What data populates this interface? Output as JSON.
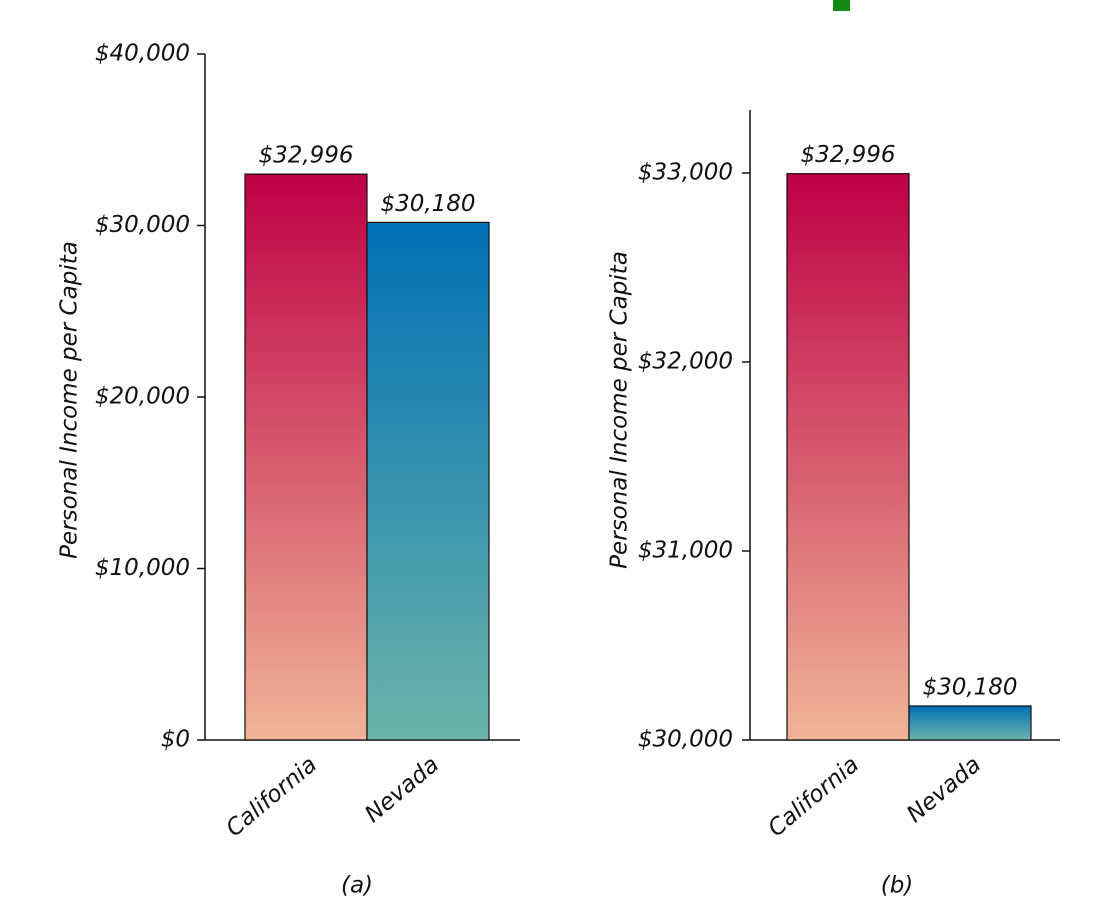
{
  "chart_data": [
    {
      "type": "bar",
      "caption": "(a)",
      "ylabel": "Personal Income per Capita",
      "categories": [
        "California",
        "Nevada"
      ],
      "values": [
        32996,
        30180
      ],
      "value_labels": [
        "$32,996",
        "$30,180"
      ],
      "colors": [
        [
          "#be0046",
          "#f0b497"
        ],
        [
          "#0070b5",
          "#6cb4a9"
        ]
      ],
      "ylim": [
        0,
        40000
      ],
      "yticks": [
        {
          "value": 0,
          "label": "$0"
        },
        {
          "value": 10000,
          "label": "$10,000"
        },
        {
          "value": 20000,
          "label": "$20,000"
        },
        {
          "value": 30000,
          "label": "$30,000"
        },
        {
          "value": 40000,
          "label": "$40,000"
        }
      ]
    },
    {
      "type": "bar",
      "caption": "(b)",
      "ylabel": "Personal Income per Capita",
      "categories": [
        "California",
        "Nevada"
      ],
      "values": [
        32996,
        30180
      ],
      "value_labels": [
        "$32,996",
        "$30,180"
      ],
      "colors": [
        [
          "#be0046",
          "#f0b497"
        ],
        [
          "#0070b5",
          "#6cb4a9"
        ]
      ],
      "ylim": [
        30000,
        33333
      ],
      "yticks": [
        {
          "value": 30000,
          "label": "$30,000"
        },
        {
          "value": 31000,
          "label": "$31,000"
        },
        {
          "value": 32000,
          "label": "$32,000"
        },
        {
          "value": 33000,
          "label": "$33,000"
        }
      ]
    }
  ]
}
